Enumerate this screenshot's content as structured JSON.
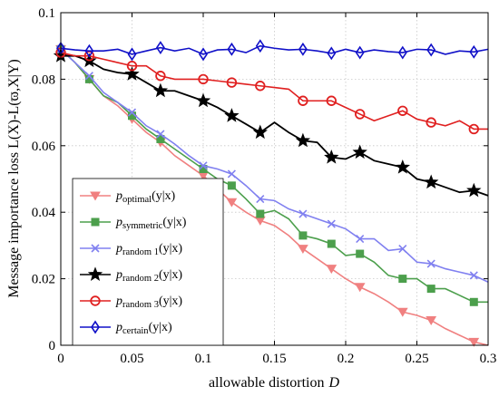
{
  "chart_data": {
    "type": "line",
    "xlabel": "allowable distortion",
    "xlabel_var": "D",
    "ylabel": "Message importance loss L(X)-L(ϖ,X|Y)",
    "xlim": [
      0,
      0.3
    ],
    "ylim": [
      0,
      0.1
    ],
    "xticks": [
      0,
      0.05,
      0.1,
      0.15,
      0.2,
      0.25,
      0.3
    ],
    "xtick_labels": [
      "0",
      "0.05",
      "0.1",
      "0.15",
      "0.2",
      "0.25",
      "0.3"
    ],
    "yticks": [
      0,
      0.02,
      0.04,
      0.06,
      0.08,
      0.1
    ],
    "ytick_labels": [
      "0",
      "0.02",
      "0.04",
      "0.06",
      "0.08",
      "0.1"
    ],
    "grid": true,
    "legend_position": "bottom-left",
    "series": [
      {
        "name_prefix": "p",
        "name_sub": "optimal",
        "name_suffix": "(y|x)",
        "color": "#f08080",
        "marker": "triangle-down",
        "x": [
          0,
          0.01,
          0.02,
          0.03,
          0.04,
          0.05,
          0.06,
          0.07,
          0.08,
          0.09,
          0.1,
          0.11,
          0.12,
          0.13,
          0.14,
          0.15,
          0.16,
          0.17,
          0.18,
          0.19,
          0.2,
          0.21,
          0.22,
          0.23,
          0.24,
          0.25,
          0.26,
          0.27,
          0.28,
          0.29,
          0.3
        ],
        "y": [
          0.089,
          0.085,
          0.08,
          0.075,
          0.072,
          0.068,
          0.064,
          0.061,
          0.057,
          0.054,
          0.051,
          0.047,
          0.043,
          0.04,
          0.0375,
          0.036,
          0.033,
          0.029,
          0.026,
          0.023,
          0.02,
          0.0175,
          0.0155,
          0.013,
          0.01,
          0.009,
          0.0075,
          0.005,
          0.003,
          0.001,
          0.0
        ],
        "markers_x": [
          0,
          0.02,
          0.05,
          0.07,
          0.1,
          0.12,
          0.14,
          0.17,
          0.19,
          0.21,
          0.24,
          0.26,
          0.29
        ]
      },
      {
        "name_prefix": "p",
        "name_sub": "symmetric",
        "name_suffix": "(y|x)",
        "color": "#4c9f4c",
        "marker": "square",
        "x": [
          0,
          0.01,
          0.02,
          0.03,
          0.04,
          0.05,
          0.06,
          0.07,
          0.08,
          0.09,
          0.1,
          0.11,
          0.12,
          0.13,
          0.14,
          0.15,
          0.16,
          0.17,
          0.18,
          0.19,
          0.2,
          0.21,
          0.22,
          0.23,
          0.24,
          0.25,
          0.26,
          0.27,
          0.28,
          0.29,
          0.3
        ],
        "y": [
          0.089,
          0.085,
          0.08,
          0.075,
          0.073,
          0.069,
          0.065,
          0.062,
          0.059,
          0.056,
          0.053,
          0.05,
          0.048,
          0.044,
          0.0395,
          0.0405,
          0.038,
          0.033,
          0.032,
          0.0305,
          0.027,
          0.0275,
          0.025,
          0.021,
          0.02,
          0.02,
          0.017,
          0.017,
          0.015,
          0.013,
          0.013
        ],
        "markers_x": [
          0,
          0.02,
          0.05,
          0.07,
          0.1,
          0.12,
          0.14,
          0.17,
          0.19,
          0.21,
          0.24,
          0.26,
          0.29
        ]
      },
      {
        "name_prefix": "p",
        "name_sub": "random 1",
        "name_suffix": "(y|x)",
        "color": "#8080f0",
        "marker": "x",
        "x": [
          0,
          0.01,
          0.02,
          0.03,
          0.04,
          0.05,
          0.06,
          0.07,
          0.08,
          0.09,
          0.1,
          0.11,
          0.12,
          0.13,
          0.14,
          0.15,
          0.16,
          0.17,
          0.18,
          0.19,
          0.2,
          0.21,
          0.22,
          0.23,
          0.24,
          0.25,
          0.26,
          0.27,
          0.28,
          0.29,
          0.3
        ],
        "y": [
          0.089,
          0.085,
          0.081,
          0.076,
          0.073,
          0.07,
          0.066,
          0.0635,
          0.0605,
          0.057,
          0.054,
          0.053,
          0.0515,
          0.048,
          0.044,
          0.0435,
          0.041,
          0.0395,
          0.038,
          0.0365,
          0.035,
          0.032,
          0.032,
          0.0285,
          0.029,
          0.025,
          0.0245,
          0.023,
          0.022,
          0.021,
          0.019
        ],
        "markers_x": [
          0,
          0.02,
          0.05,
          0.07,
          0.1,
          0.12,
          0.14,
          0.17,
          0.19,
          0.21,
          0.24,
          0.26,
          0.29
        ]
      },
      {
        "name_prefix": "p",
        "name_sub": "random 2",
        "name_suffix": "(y|x)",
        "color": "#000000",
        "marker": "star",
        "x": [
          0,
          0.01,
          0.02,
          0.03,
          0.04,
          0.05,
          0.06,
          0.07,
          0.08,
          0.09,
          0.1,
          0.11,
          0.12,
          0.13,
          0.14,
          0.15,
          0.16,
          0.17,
          0.18,
          0.19,
          0.2,
          0.21,
          0.22,
          0.23,
          0.24,
          0.25,
          0.26,
          0.27,
          0.28,
          0.29,
          0.3
        ],
        "y": [
          0.087,
          0.087,
          0.0855,
          0.083,
          0.082,
          0.0815,
          0.079,
          0.0765,
          0.0765,
          0.075,
          0.0735,
          0.0715,
          0.069,
          0.0665,
          0.064,
          0.067,
          0.064,
          0.0615,
          0.061,
          0.0565,
          0.056,
          0.058,
          0.0555,
          0.0545,
          0.0535,
          0.05,
          0.049,
          0.0475,
          0.046,
          0.0465,
          0.045
        ],
        "markers_x": [
          0,
          0.02,
          0.05,
          0.07,
          0.1,
          0.12,
          0.14,
          0.17,
          0.19,
          0.21,
          0.24,
          0.26,
          0.29
        ]
      },
      {
        "name_prefix": "p",
        "name_sub": "random 3",
        "name_suffix": "(y|x)",
        "color": "#e02020",
        "marker": "circle",
        "x": [
          0,
          0.01,
          0.02,
          0.03,
          0.04,
          0.05,
          0.06,
          0.07,
          0.08,
          0.09,
          0.1,
          0.11,
          0.12,
          0.13,
          0.14,
          0.15,
          0.16,
          0.17,
          0.18,
          0.19,
          0.2,
          0.21,
          0.22,
          0.23,
          0.24,
          0.25,
          0.26,
          0.27,
          0.28,
          0.29,
          0.3
        ],
        "y": [
          0.088,
          0.087,
          0.087,
          0.086,
          0.085,
          0.084,
          0.084,
          0.081,
          0.08,
          0.08,
          0.08,
          0.0795,
          0.079,
          0.0785,
          0.078,
          0.0775,
          0.077,
          0.0735,
          0.0735,
          0.0735,
          0.0715,
          0.0695,
          0.0675,
          0.069,
          0.0705,
          0.068,
          0.067,
          0.066,
          0.0675,
          0.065,
          0.065
        ],
        "markers_x": [
          0,
          0.02,
          0.05,
          0.07,
          0.1,
          0.12,
          0.14,
          0.17,
          0.19,
          0.21,
          0.24,
          0.26,
          0.29
        ]
      },
      {
        "name_prefix": "p",
        "name_sub": "certain",
        "name_suffix": "(y|x)",
        "color": "#1010c8",
        "marker": "diamond",
        "x": [
          0,
          0.01,
          0.02,
          0.03,
          0.04,
          0.05,
          0.06,
          0.07,
          0.08,
          0.09,
          0.1,
          0.11,
          0.12,
          0.13,
          0.14,
          0.15,
          0.16,
          0.17,
          0.18,
          0.19,
          0.2,
          0.21,
          0.22,
          0.23,
          0.24,
          0.25,
          0.26,
          0.27,
          0.28,
          0.29,
          0.3
        ],
        "y": [
          0.0893,
          0.0888,
          0.0885,
          0.0885,
          0.089,
          0.0875,
          0.0885,
          0.0895,
          0.0885,
          0.0893,
          0.0875,
          0.0888,
          0.089,
          0.088,
          0.09,
          0.0893,
          0.0888,
          0.089,
          0.0885,
          0.0878,
          0.089,
          0.088,
          0.0888,
          0.0883,
          0.088,
          0.089,
          0.0888,
          0.0875,
          0.0885,
          0.0882,
          0.089
        ],
        "markers_x": [
          0,
          0.02,
          0.05,
          0.07,
          0.1,
          0.12,
          0.14,
          0.17,
          0.19,
          0.21,
          0.24,
          0.26,
          0.29
        ]
      }
    ]
  }
}
